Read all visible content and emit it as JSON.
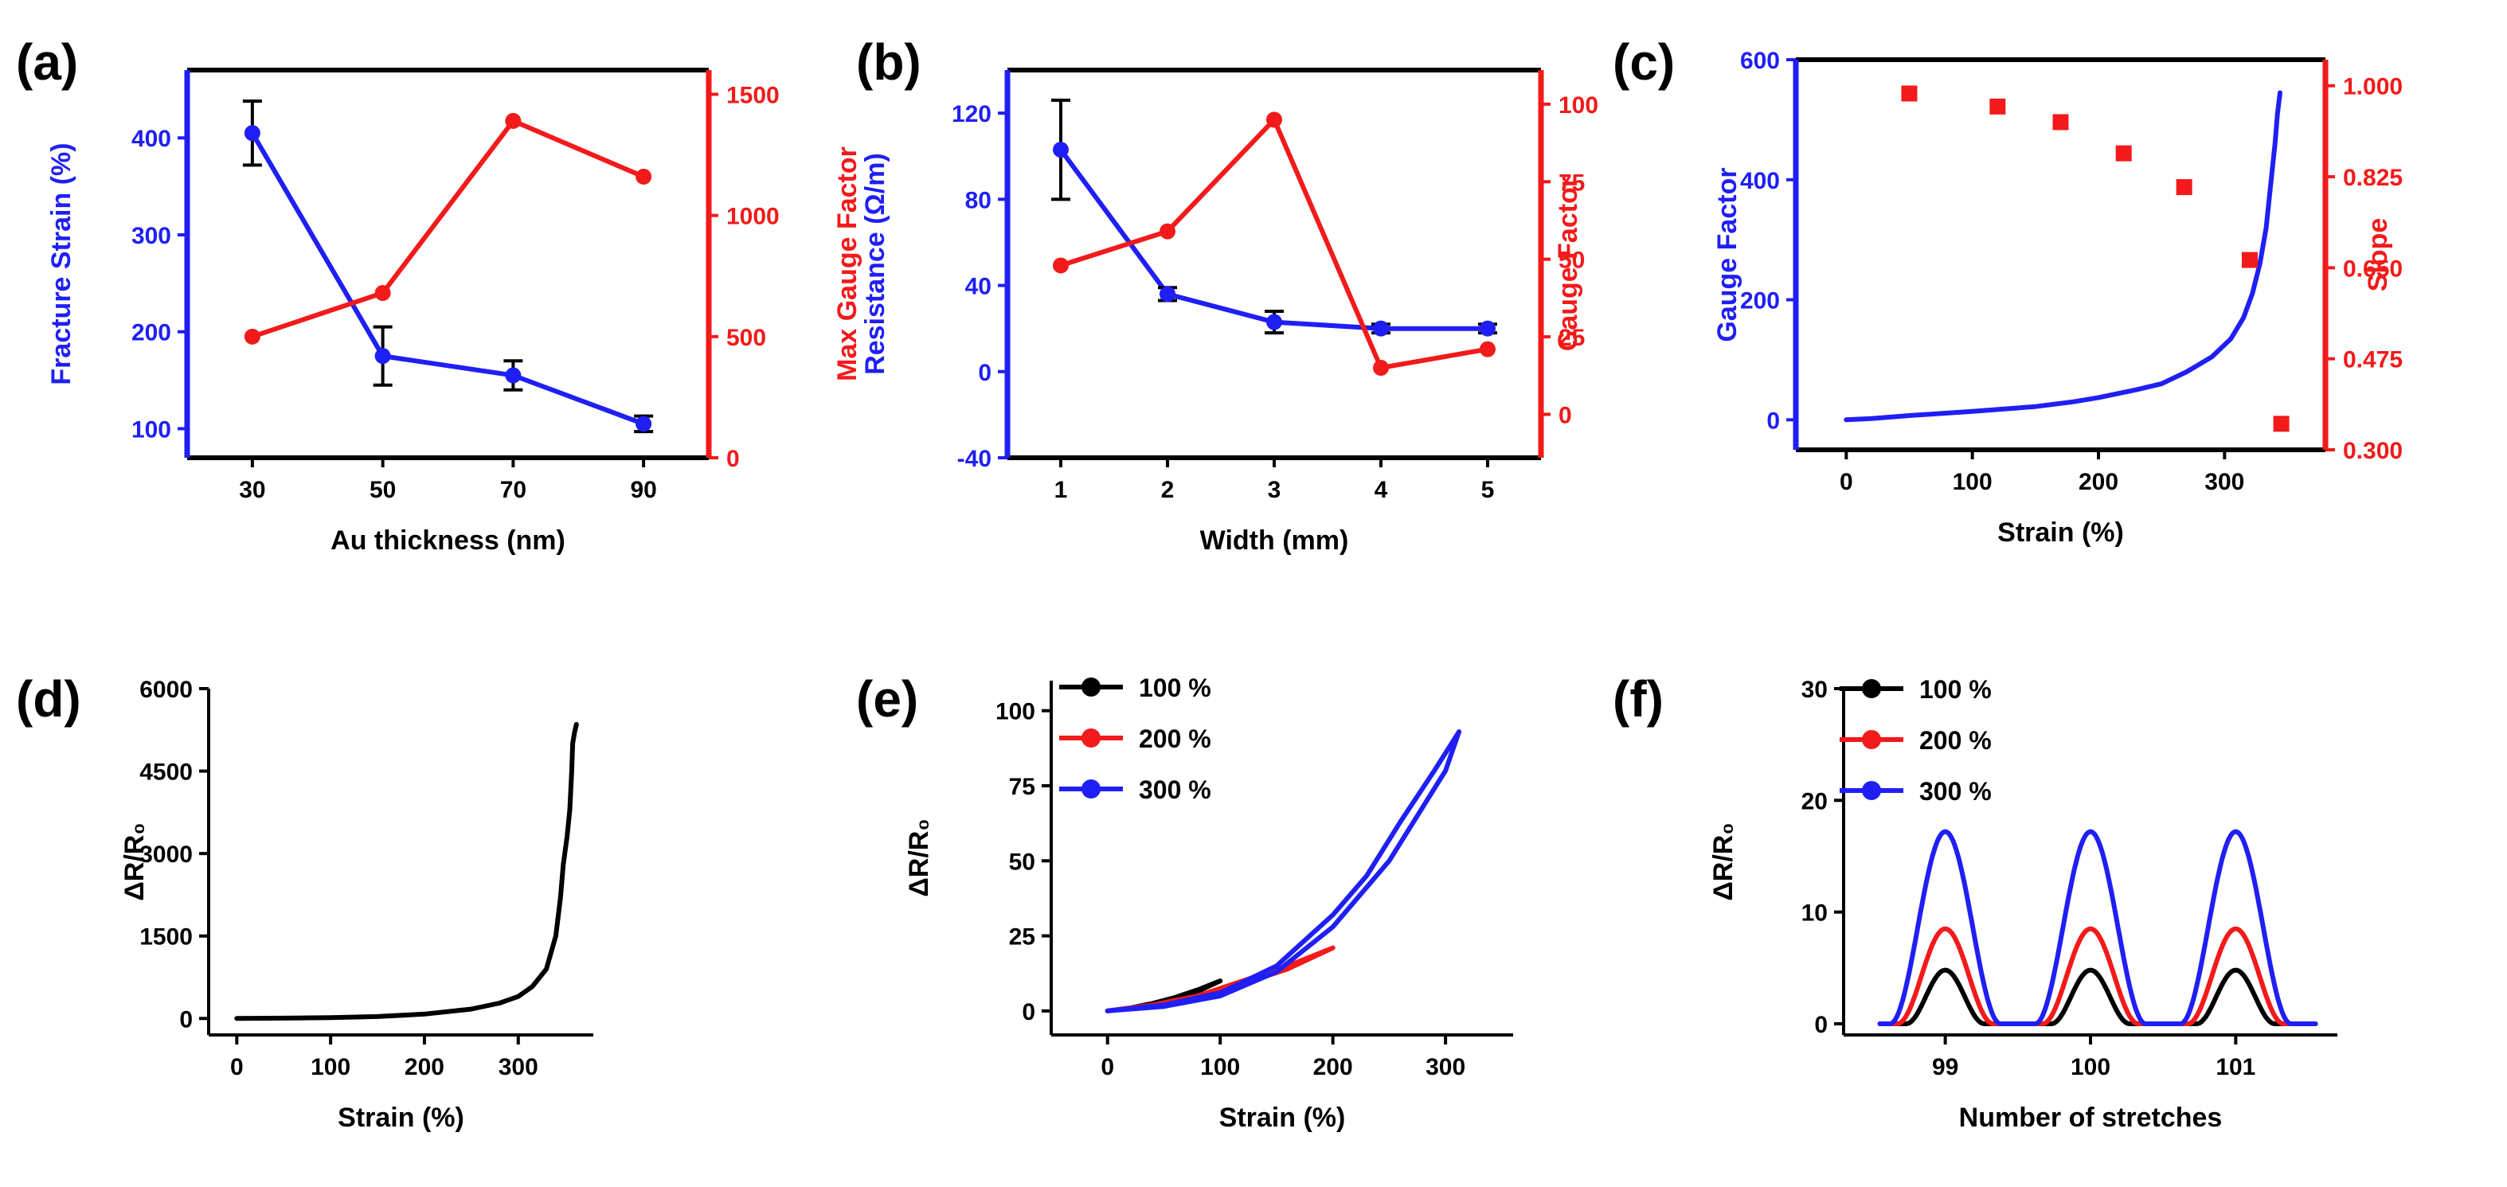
{
  "colors": {
    "blue": "#1f1ff5",
    "red": "#f21a1a",
    "black": "#000000"
  },
  "chart_data": [
    {
      "panel": "(a)",
      "type": "line",
      "xlabel": "Au thickness (nm)",
      "ylabel": "Fracture Strain (%)",
      "ylabel_right": "Max Gauge Factor",
      "xlim": [
        20,
        100
      ],
      "ylim": [
        70,
        470
      ],
      "ylim_right": [
        0,
        1600
      ],
      "xticks": [
        30,
        50,
        70,
        90
      ],
      "yticks": [
        100,
        200,
        300,
        400
      ],
      "yticks_right": [
        0,
        500,
        1000,
        1500
      ],
      "series": [
        {
          "name": "Fracture Strain",
          "axis": "left",
          "color": "#1f1ff5",
          "x": [
            30,
            50,
            70,
            90
          ],
          "values": [
            405,
            175,
            155,
            105
          ],
          "errors": [
            33,
            30,
            15,
            8
          ]
        },
        {
          "name": "Max Gauge Factor",
          "axis": "right",
          "color": "#f21a1a",
          "x": [
            30,
            50,
            70,
            90
          ],
          "values": [
            500,
            680,
            1390,
            1160
          ]
        }
      ]
    },
    {
      "panel": "(b)",
      "type": "line",
      "xlabel": "Width (mm)",
      "ylabel": "Resistance (Ω/m)",
      "ylabel_right": "Gauge Factor",
      "xlim": [
        0.5,
        5.5
      ],
      "ylim": [
        -40,
        140
      ],
      "ylim_right": [
        -14,
        111
      ],
      "xticks": [
        1,
        2,
        3,
        4,
        5
      ],
      "yticks": [
        -40,
        0,
        40,
        80,
        120
      ],
      "yticks_right": [
        0,
        25,
        50,
        75,
        100
      ],
      "series": [
        {
          "name": "Resistance",
          "axis": "left",
          "color": "#1f1ff5",
          "x": [
            1,
            2,
            3,
            4,
            5
          ],
          "values": [
            103,
            36,
            23,
            20,
            20
          ],
          "errors": [
            23,
            3,
            5,
            2,
            2
          ]
        },
        {
          "name": "Gauge Factor",
          "axis": "right",
          "color": "#f21a1a",
          "x": [
            1,
            2,
            3,
            4,
            5
          ],
          "values": [
            48,
            59,
            95,
            15,
            21
          ]
        }
      ]
    },
    {
      "panel": "(c)",
      "type": "line+scatter",
      "xlabel": "Strain (%)",
      "ylabel": "Gauge Factor",
      "ylabel_right": "Slope",
      "xlim": [
        -40,
        380
      ],
      "ylim": [
        -50,
        600
      ],
      "ylim_right": [
        0.3,
        1.05
      ],
      "xticks": [
        0,
        100,
        200,
        300
      ],
      "yticks": [
        0,
        200,
        400,
        600
      ],
      "yticks_right": [
        "0.300",
        "0.475",
        "0.650",
        "0.825",
        "1.000"
      ],
      "series": [
        {
          "name": "Gauge Factor",
          "axis": "left",
          "color": "#1f1ff5",
          "x": [
            0,
            20,
            50,
            100,
            150,
            180,
            200,
            230,
            250,
            270,
            290,
            305,
            315,
            322,
            328,
            333,
            337,
            340,
            342,
            344
          ],
          "values": [
            0,
            2,
            7,
            14,
            22,
            30,
            37,
            50,
            60,
            80,
            105,
            135,
            170,
            210,
            260,
            320,
            400,
            460,
            510,
            545
          ]
        },
        {
          "name": "Slope",
          "axis": "right",
          "color": "#f21a1a",
          "style": "markers",
          "x": [
            50,
            120,
            170,
            220,
            268,
            320,
            345
          ],
          "values": [
            0.985,
            0.96,
            0.93,
            0.87,
            0.805,
            0.665,
            0.35
          ]
        }
      ]
    },
    {
      "panel": "(d)",
      "type": "line",
      "xlabel": "Strain (%)",
      "ylabel": "ΔR/R₀",
      "xlim": [
        -30,
        380
      ],
      "ylim": [
        -300,
        6000
      ],
      "xticks": [
        0,
        100,
        200,
        300
      ],
      "yticks": [
        0,
        1500,
        3000,
        4500,
        6000
      ],
      "series": [
        {
          "name": "ΔR/R₀",
          "color": "#000000",
          "x": [
            0,
            50,
            100,
            150,
            200,
            250,
            280,
            300,
            315,
            330,
            340,
            345,
            348,
            352,
            355,
            357,
            358,
            360,
            362
          ],
          "values": [
            0,
            5,
            15,
            35,
            80,
            170,
            280,
            400,
            580,
            900,
            1500,
            2200,
            2800,
            3300,
            3800,
            4500,
            5000,
            5200,
            5350
          ]
        }
      ]
    },
    {
      "panel": "(e)",
      "type": "line",
      "xlabel": "Strain (%)",
      "ylabel": "ΔR/R₀",
      "xlim": [
        -50,
        360
      ],
      "ylim": [
        -8,
        110
      ],
      "xticks": [
        0,
        100,
        200,
        300
      ],
      "yticks": [
        0,
        25,
        50,
        75,
        100
      ],
      "legend": "top-left",
      "series": [
        {
          "name": "100 %",
          "color": "#000000",
          "x": [
            0,
            20,
            40,
            60,
            80,
            100,
            80,
            60,
            40,
            20,
            0
          ],
          "values": [
            0,
            1,
            2.5,
            4.5,
            7,
            10,
            6.5,
            4,
            2,
            0.8,
            0
          ]
        },
        {
          "name": "200 %",
          "color": "#f21a1a",
          "x": [
            0,
            40,
            80,
            120,
            160,
            200,
            160,
            120,
            80,
            40,
            0
          ],
          "values": [
            0,
            2,
            5,
            9,
            14,
            21,
            15,
            10,
            5,
            1.8,
            0
          ]
        },
        {
          "name": "300 %",
          "color": "#1f1ff5",
          "x": [
            0,
            50,
            100,
            150,
            200,
            250,
            280,
            300,
            312,
            290,
            260,
            230,
            200,
            150,
            100,
            50,
            0
          ],
          "values": [
            0,
            1.5,
            5,
            13,
            28,
            50,
            68,
            80,
            93,
            80,
            63,
            45,
            32,
            15,
            6,
            2,
            0
          ]
        }
      ]
    },
    {
      "panel": "(f)",
      "type": "line",
      "xlabel": "Number of stretches",
      "ylabel": "ΔR/R₀",
      "xlim": [
        98.3,
        101.7
      ],
      "ylim": [
        -1,
        30
      ],
      "xticks": [
        99,
        100,
        101
      ],
      "yticks": [
        0,
        10,
        20,
        30
      ],
      "legend": "top-left",
      "cycles": {
        "centers": [
          99,
          100,
          101
        ],
        "start": 98.55
      },
      "series": [
        {
          "name": "100 %",
          "color": "#000000",
          "peak": 4.8,
          "half_width": 0.27
        },
        {
          "name": "200 %",
          "color": "#f21a1a",
          "peak": 8.5,
          "half_width": 0.33
        },
        {
          "name": "300 %",
          "color": "#1f1ff5",
          "peak": 17.2,
          "half_width": 0.38
        }
      ]
    }
  ]
}
